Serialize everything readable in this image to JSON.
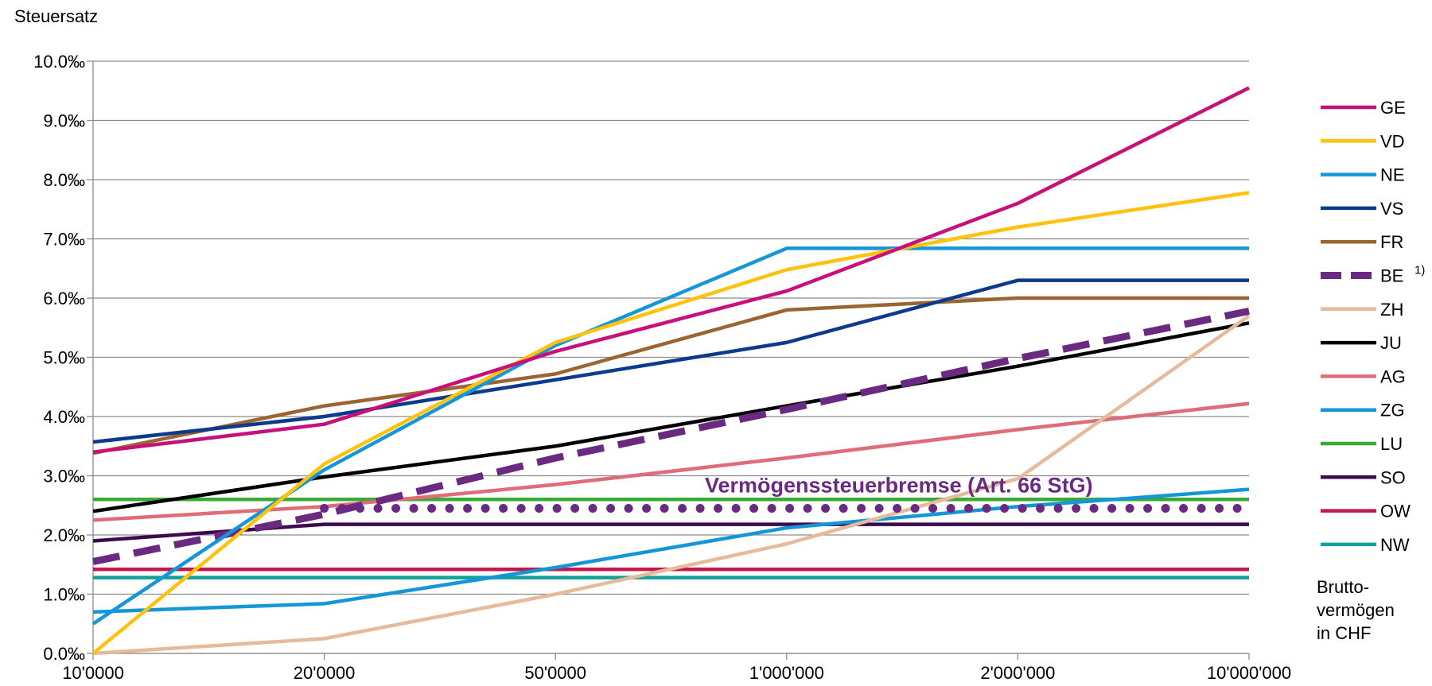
{
  "chart_data": {
    "type": "line",
    "ylabel": "Steuersatz",
    "x_note": [
      "Brutto-",
      "vermögen",
      "in CHF"
    ],
    "categories": [
      "10'0000",
      "20'0000",
      "50'0000",
      "1'000'000",
      "2'000'000",
      "10'000'000"
    ],
    "y_ticks": [
      "0.0‰",
      "1.0‰",
      "2.0‰",
      "3.0‰",
      "4.0‰",
      "5.0‰",
      "6.0‰",
      "7.0‰",
      "8.0‰",
      "9.0‰",
      "10.0‰"
    ],
    "ylim": [
      0,
      10
    ],
    "grid": true,
    "legend_position": "right",
    "annotation": {
      "text": "Vermögenssteuerbremse (Art. 66 StG)",
      "value": 2.45,
      "color": "#6b2a82"
    },
    "series": [
      {
        "name": "GE",
        "color": "#c8107a",
        "style": "solid",
        "values": [
          3.4,
          3.87,
          5.1,
          6.12,
          7.6,
          9.55
        ]
      },
      {
        "name": "VD",
        "color": "#ffc20e",
        "style": "solid",
        "values": [
          0.0,
          3.2,
          5.25,
          6.48,
          7.2,
          7.78
        ]
      },
      {
        "name": "NE",
        "color": "#1496d8",
        "style": "solid",
        "values": [
          0.5,
          3.1,
          5.2,
          6.84,
          6.84,
          6.84
        ]
      },
      {
        "name": "VS",
        "color": "#0c3a8c",
        "style": "solid",
        "values": [
          3.57,
          4.0,
          4.62,
          5.25,
          6.3,
          6.3
        ]
      },
      {
        "name": "FR",
        "color": "#9b6531",
        "style": "solid",
        "values": [
          3.38,
          4.18,
          4.72,
          5.8,
          6.0,
          6.0
        ]
      },
      {
        "name": "BE",
        "superscript": "1)",
        "color": "#6b2a82",
        "style": "dashed",
        "values": [
          1.55,
          2.35,
          3.3,
          4.12,
          4.98,
          5.78
        ]
      },
      {
        "name": "ZH",
        "color": "#e6bb9b",
        "style": "solid",
        "values": [
          0.0,
          0.25,
          1.0,
          1.85,
          2.95,
          5.7
        ]
      },
      {
        "name": "JU",
        "color": "#000000",
        "style": "solid",
        "values": [
          2.4,
          2.98,
          3.5,
          4.18,
          4.85,
          5.58
        ]
      },
      {
        "name": "AG",
        "color": "#e06b79",
        "style": "solid",
        "values": [
          2.25,
          2.48,
          2.85,
          3.3,
          3.78,
          4.22
        ]
      },
      {
        "name": "ZG",
        "color": "#1496d8",
        "style": "solid",
        "values": [
          0.7,
          0.84,
          1.45,
          2.12,
          2.48,
          2.77
        ]
      },
      {
        "name": "LU",
        "color": "#3aaa35",
        "style": "solid",
        "values": [
          2.6,
          2.6,
          2.6,
          2.6,
          2.6,
          2.6
        ]
      },
      {
        "name": "SO",
        "color": "#3c0b4f",
        "style": "solid",
        "values": [
          1.9,
          2.18,
          2.18,
          2.18,
          2.18,
          2.18
        ]
      },
      {
        "name": "OW",
        "color": "#c3184b",
        "style": "solid",
        "values": [
          1.42,
          1.42,
          1.42,
          1.42,
          1.42,
          1.42
        ]
      },
      {
        "name": "NW",
        "color": "#12a19a",
        "style": "solid",
        "values": [
          1.28,
          1.28,
          1.28,
          1.28,
          1.28,
          1.28
        ]
      }
    ]
  }
}
